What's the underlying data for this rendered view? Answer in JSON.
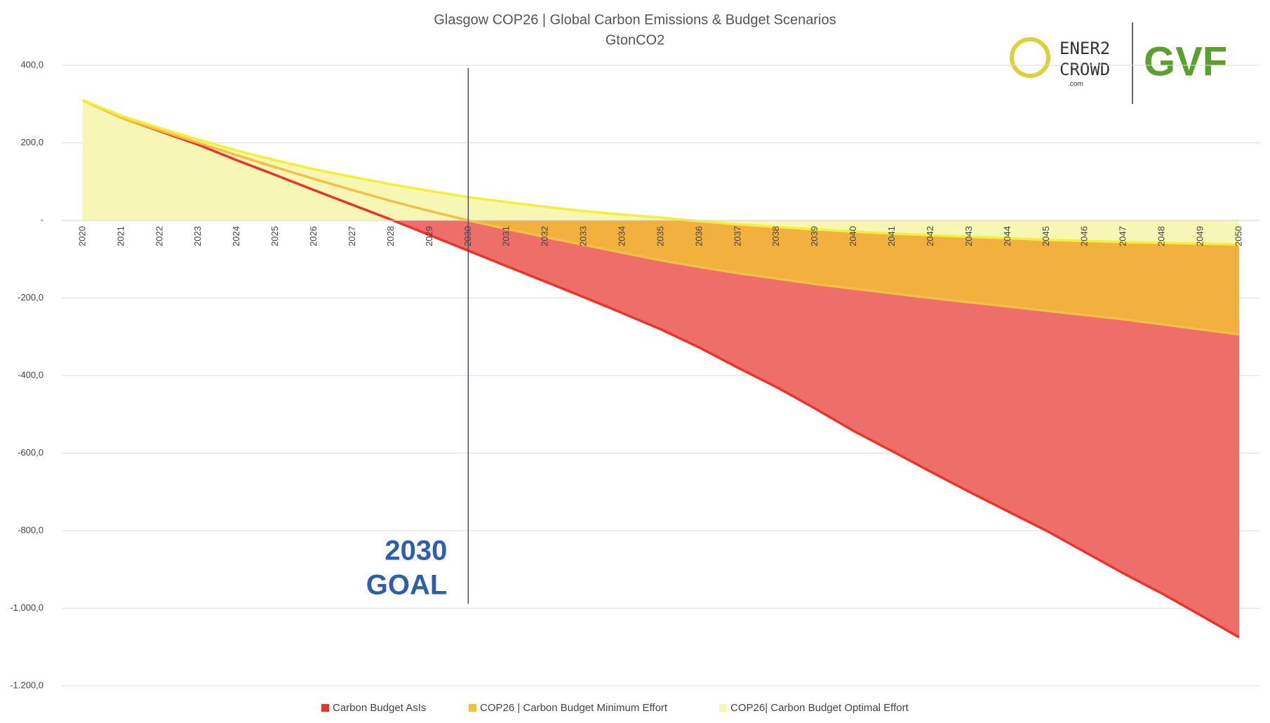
{
  "chart_data": {
    "type": "area",
    "title": "Glasgow COP26 | Global Carbon Emissions & Budget Scenarios",
    "subtitle": "GtonCO2",
    "categories": [
      "2020",
      "2021",
      "2022",
      "2023",
      "2024",
      "2025",
      "2026",
      "2027",
      "2028",
      "2029",
      "2030",
      "2031",
      "2032",
      "2033",
      "2034",
      "2035",
      "2036",
      "2037",
      "2038",
      "2039",
      "2040",
      "2041",
      "2042",
      "2043",
      "2044",
      "2045",
      "2046",
      "2047",
      "2048",
      "2049",
      "2050"
    ],
    "series": [
      {
        "name": "Carbon Budget AsIs",
        "color": "#ee6f69",
        "line_color": "#e8352b",
        "values": [
          310,
          265,
          230,
          195,
          155,
          117,
          78,
          40,
          2,
          -38,
          -78,
          -118,
          -158,
          -198,
          -239,
          -281,
          -328,
          -380,
          -430,
          -485,
          -543,
          -595,
          -648,
          -700,
          -750,
          -800,
          -855,
          -910,
          -962,
          -1018,
          -1075
        ]
      },
      {
        "name": "COP26 | Carbon Budget Minimum Effort",
        "color": "#f2b13e",
        "line_color": "#f5be45",
        "values": [
          310,
          265,
          232,
          200,
          168,
          137,
          107,
          78,
          50,
          24,
          0,
          -22,
          -43,
          -63,
          -83,
          -103,
          -120,
          -136,
          -150,
          -164,
          -176,
          -188,
          -200,
          -211,
          -222,
          -233,
          -244,
          -255,
          -268,
          -281,
          -294
        ]
      },
      {
        "name": "COP26| Carbon Budget Optimal Effort",
        "color": "#f6f7b5",
        "line_color": "#f7ee3a",
        "values": [
          310,
          270,
          238,
          208,
          180,
          155,
          132,
          112,
          93,
          76,
          60,
          47,
          35,
          24,
          15,
          7,
          -2,
          -10,
          -17,
          -23,
          -29,
          -34,
          -38,
          -42,
          -46,
          -50,
          -53,
          -56,
          -58,
          -60,
          -62
        ]
      }
    ],
    "ylim": [
      -1200,
      400
    ],
    "yticks": [
      {
        "value": 400,
        "label": "400,0"
      },
      {
        "value": 200,
        "label": "200,0"
      },
      {
        "value": 0,
        "label": "-"
      },
      {
        "value": -200,
        "label": "-200,0"
      },
      {
        "value": -400,
        "label": "-400,0"
      },
      {
        "value": -600,
        "label": "-600,0"
      },
      {
        "value": -800,
        "label": "-800,0"
      },
      {
        "value": -1000,
        "label": "-1.000,0"
      },
      {
        "value": -1200,
        "label": "-1.200,0"
      }
    ],
    "grid": true,
    "marker_category": 10,
    "annotation": [
      "2030",
      "GOAL"
    ],
    "logo": {
      "left": [
        "ENER2",
        "CROWD",
        ".com"
      ],
      "right": "GVF"
    }
  }
}
